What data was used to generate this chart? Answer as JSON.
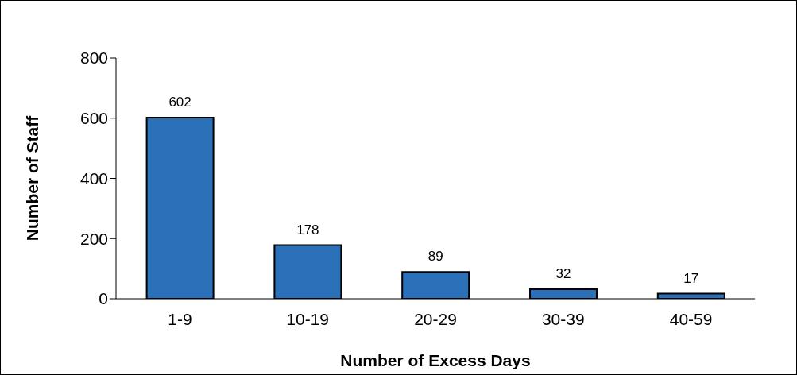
{
  "chart_data": {
    "type": "bar",
    "xlabel": "Number of Excess Days",
    "ylabel": "Number of Staff",
    "categories": [
      "1-9",
      "10-19",
      "20-29",
      "30-39",
      "40-59"
    ],
    "values": [
      602,
      178,
      89,
      32,
      17
    ],
    "color": "#2a71b9",
    "ylim": [
      0,
      800
    ],
    "yticks": [
      0,
      200,
      400,
      600,
      800
    ],
    "data_labels": true
  }
}
